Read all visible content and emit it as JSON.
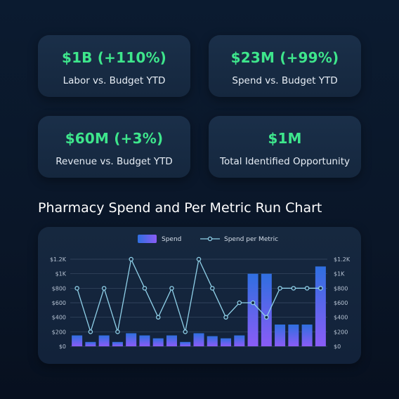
{
  "kpis": [
    {
      "value": "$1B (+110%)",
      "label": "Labor vs. Budget YTD"
    },
    {
      "value": "$23M (+99%)",
      "label": "Spend vs. Budget YTD"
    },
    {
      "value": "$60M (+3%)",
      "label": "Revenue vs. Budget YTD"
    },
    {
      "value": "$1M",
      "label": "Total Identified Opportunity"
    }
  ],
  "colors": {
    "kpi_value": "#3ee68c",
    "bar_top": "#2f6fe0",
    "bar_bottom": "#8a5cf6",
    "line": "#8fd0e8"
  },
  "chart_data": {
    "type": "bar",
    "title": "Pharmacy Spend and Per Metric Run Chart",
    "categories": [
      "",
      "",
      "",
      "",
      "",
      "",
      "",
      "",
      "",
      "",
      "",
      "",
      "",
      "",
      "",
      "",
      "",
      "",
      ""
    ],
    "series": [
      {
        "name": "Spend",
        "type": "bar",
        "values": [
          150,
          60,
          150,
          60,
          180,
          150,
          110,
          150,
          60,
          180,
          140,
          110,
          150,
          1000,
          1000,
          300,
          300,
          300,
          1100
        ]
      },
      {
        "name": "Spend per Metric",
        "type": "line",
        "values": [
          800,
          200,
          800,
          200,
          1200,
          800,
          400,
          800,
          200,
          1200,
          800,
          400,
          600,
          600,
          400,
          800,
          800,
          800,
          800
        ]
      }
    ],
    "y_ticks": [
      "$0",
      "$200",
      "$400",
      "$600",
      "$800",
      "$1K",
      "$1.2K"
    ],
    "ylim": [
      0,
      1200
    ],
    "y2lim": [
      0,
      1200
    ],
    "grid": true,
    "legend": "top-center"
  }
}
